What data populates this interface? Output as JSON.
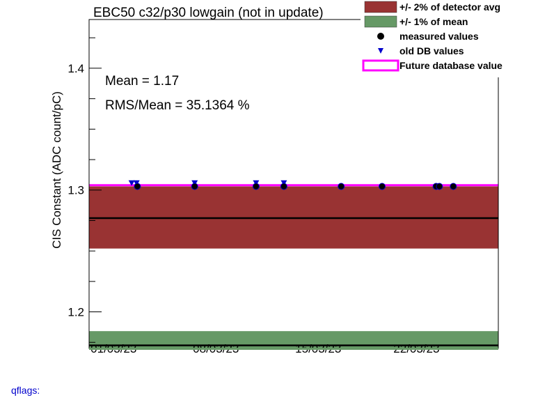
{
  "chart_data": {
    "type": "scatter",
    "title": "EBC50 c32/p30 lowgain (not in update)",
    "ylabel": "CIS Constant (ADC count/pC)",
    "xlabel": "",
    "ylim": [
      1.17,
      1.44
    ],
    "yticks": [
      {
        "value": 1.2,
        "label": "1.2"
      },
      {
        "value": 1.3,
        "label": "1.3"
      },
      {
        "value": 1.4,
        "label": "1.4"
      }
    ],
    "xticks": [
      {
        "pos": 0.06,
        "label": "01/03/23"
      },
      {
        "pos": 0.31,
        "label": "08/03/23"
      },
      {
        "pos": 0.56,
        "label": "15/03/23"
      },
      {
        "pos": 0.8,
        "label": "22/03/23"
      }
    ],
    "stats": {
      "mean_text": "Mean = 1.17",
      "rms_text": "RMS/Mean = 35.1364 %"
    },
    "detector_avg": 1.277,
    "detector_band": [
      1.252,
      1.303
    ],
    "mean_value": 1.1725,
    "mean_band": [
      1.1608,
      1.1842
    ],
    "future_db_value": 1.304,
    "measured": [
      {
        "x": 0.118,
        "y": 1.303
      },
      {
        "x": 0.258,
        "y": 1.303
      },
      {
        "x": 0.408,
        "y": 1.303
      },
      {
        "x": 0.476,
        "y": 1.303
      },
      {
        "x": 0.616,
        "y": 1.303
      },
      {
        "x": 0.716,
        "y": 1.303
      },
      {
        "x": 0.848,
        "y": 1.303
      },
      {
        "x": 0.856,
        "y": 1.303
      },
      {
        "x": 0.89,
        "y": 1.303
      }
    ],
    "old_db": [
      {
        "x": 0.104,
        "y": 1.306
      },
      {
        "x": 0.116,
        "y": 1.306
      },
      {
        "x": 0.258,
        "y": 1.306
      },
      {
        "x": 0.408,
        "y": 1.306
      },
      {
        "x": 0.476,
        "y": 1.306
      }
    ],
    "legend": [
      {
        "label": "+/- 2% of detector avg",
        "kind": "box",
        "color": "#993333"
      },
      {
        "label": "+/- 1% of mean",
        "kind": "box",
        "color": "#669966"
      },
      {
        "label": "measured values",
        "kind": "dot",
        "color": "#000000"
      },
      {
        "label": "old DB values",
        "kind": "triangle",
        "color": "#0000cc"
      },
      {
        "label": "Future database value",
        "kind": "line",
        "color": "#ff00ff"
      }
    ],
    "colors": {
      "detector_band": "#993333",
      "mean_band": "#669966",
      "measured": "#000000",
      "measured_outline": "#0000cc",
      "old_db": "#0000cc",
      "future": "#ff00ff",
      "avg_line": "#000000"
    }
  },
  "footer": {
    "qflags_label": "qflags:"
  }
}
